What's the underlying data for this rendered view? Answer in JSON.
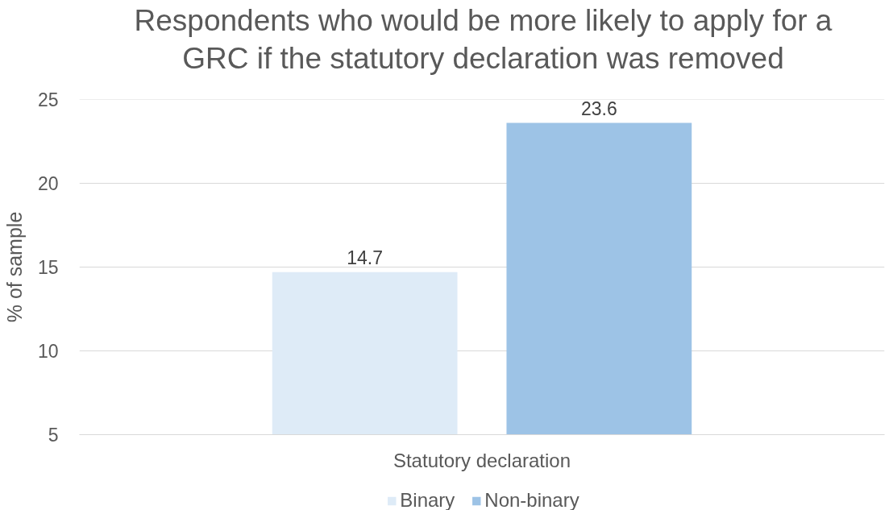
{
  "chart_data": {
    "type": "bar",
    "title": "Respondents who would be more likely to apply for a GRC if the statutory declaration was removed",
    "ylabel": "% of sample",
    "categories": [
      "Statutory declaration"
    ],
    "series": [
      {
        "name": "Binary",
        "color": "#deebf7",
        "values": [
          14.7
        ]
      },
      {
        "name": "Non-binary",
        "color": "#9dc3e6",
        "values": [
          23.6
        ]
      }
    ],
    "ylim": [
      5,
      25
    ],
    "yticks": [
      5,
      10,
      15,
      20,
      25
    ],
    "grid": "y",
    "legend": "bottom",
    "data_labels": true
  }
}
